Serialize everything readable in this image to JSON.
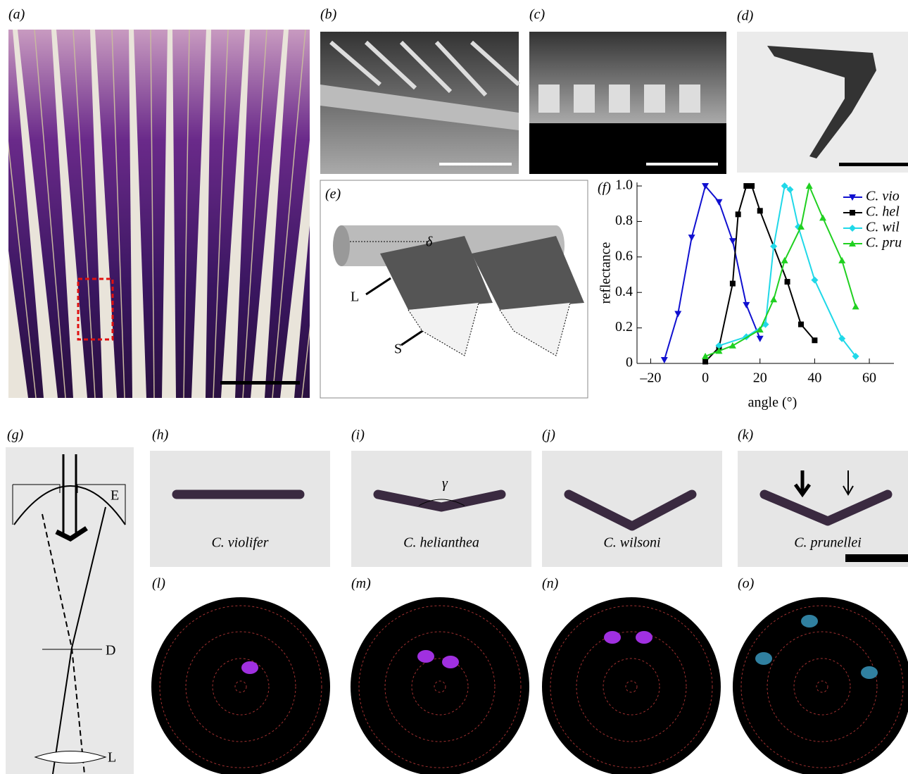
{
  "panel_labels": [
    "(a)",
    "(b)",
    "(c)",
    "(d)",
    "(e)",
    "(f)",
    "(g)",
    "(h)",
    "(i)",
    "(j)",
    "(k)",
    "(l)",
    "(m)",
    "(n)",
    "(o)"
  ],
  "diagram_e": {
    "delta": "δ",
    "lamella": "L",
    "spine": "S"
  },
  "diagram_g": {
    "E": "E",
    "D": "D",
    "L": "L"
  },
  "gamma": "γ",
  "species": [
    "C. violifer",
    "C. helianthea",
    "C. wilsoni",
    "C. prunellei"
  ],
  "chart_data": {
    "type": "line",
    "x_label": "angle (°)",
    "y_label": "reflectance",
    "xlim": [
      -25,
      69
    ],
    "ylim": [
      0,
      1.02
    ],
    "xticks": [
      {
        "value": -20,
        "label": "–20"
      },
      0,
      20,
      40,
      60
    ],
    "yticks": [
      0,
      0.2,
      0.4,
      0.6,
      0.8,
      {
        "value": 1,
        "label": "1.0"
      }
    ],
    "series": [
      {
        "name": "C. vio",
        "color": "#1010d0",
        "marker": "tri-down",
        "x": [
          -15,
          -10,
          -5,
          0,
          5,
          10,
          15,
          20
        ],
        "values": [
          0.02,
          0.28,
          0.71,
          1.0,
          0.91,
          0.69,
          0.33,
          0.14
        ]
      },
      {
        "name": "C. hel",
        "color": "#000000",
        "marker": "square",
        "x": [
          0,
          5,
          10,
          12,
          15,
          17,
          20,
          30,
          35,
          40
        ],
        "values": [
          0.01,
          0.09,
          0.45,
          0.84,
          1.0,
          1.0,
          0.86,
          0.46,
          0.22,
          0.13
        ]
      },
      {
        "name": "C. wil",
        "color": "#20d8e8",
        "marker": "diamond",
        "x": [
          5,
          15,
          22,
          25,
          29,
          31,
          34,
          40,
          50,
          55
        ],
        "values": [
          0.1,
          0.15,
          0.22,
          0.66,
          1.0,
          0.98,
          0.77,
          0.47,
          0.14,
          0.04
        ]
      },
      {
        "name": "C. pru",
        "color": "#20d020",
        "marker": "tri-up",
        "x": [
          0,
          5,
          10,
          20,
          25,
          29,
          35,
          38,
          43,
          50,
          55
        ],
        "values": [
          0.04,
          0.07,
          0.1,
          0.19,
          0.36,
          0.58,
          0.77,
          1.0,
          0.82,
          0.58,
          0.32
        ]
      }
    ]
  }
}
